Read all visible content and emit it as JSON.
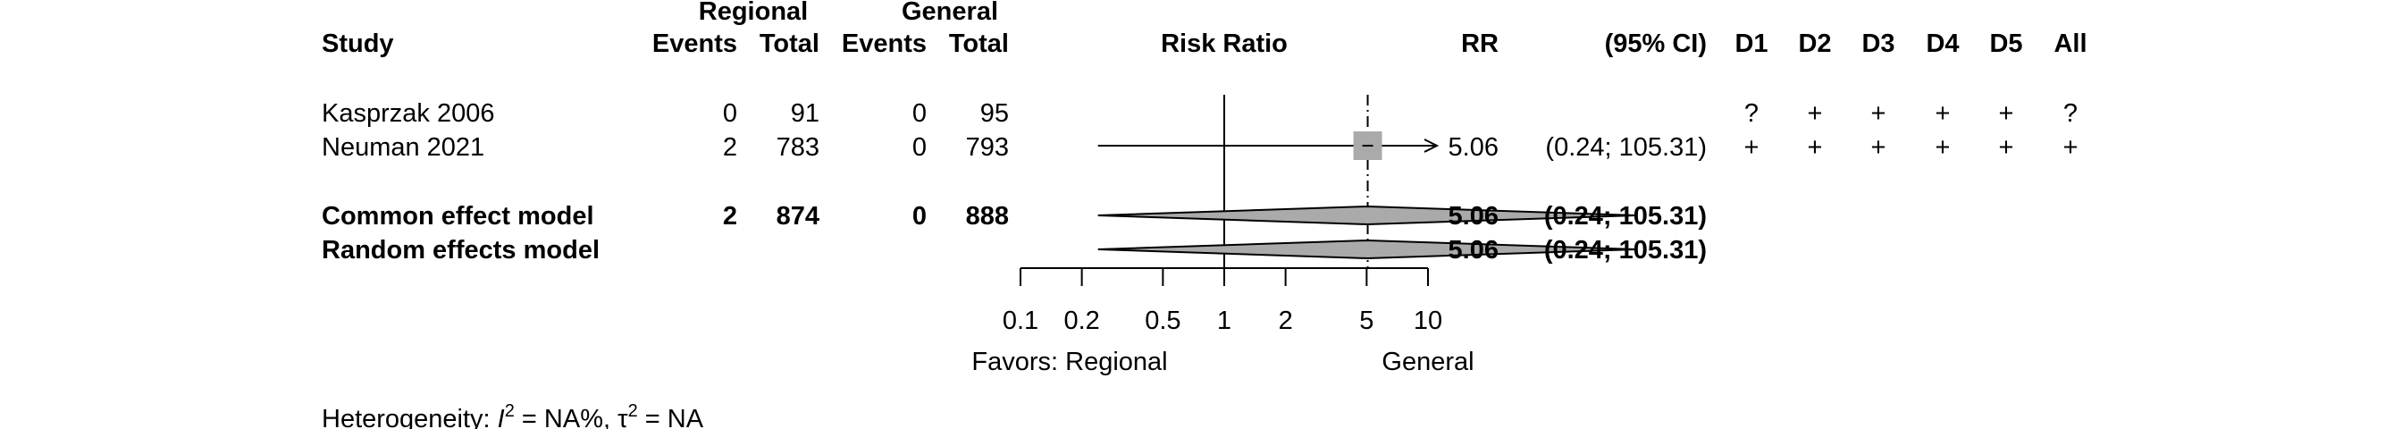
{
  "chart_data": {
    "type": "forest",
    "headers": {
      "study": "Study",
      "group1": "Regional",
      "group2": "General",
      "events": "Events",
      "total": "Total",
      "plot": "Risk Ratio",
      "rr": "RR",
      "ci": "(95% CI)",
      "domains": [
        "D1",
        "D2",
        "D3",
        "D4",
        "D5",
        "All"
      ]
    },
    "studies": [
      {
        "name": "Kasprzak 2006",
        "e1": "0",
        "t1": "91",
        "e2": "0",
        "t2": "95",
        "rr": "",
        "ci": "",
        "point": null,
        "lower": null,
        "upper": null,
        "bias": [
          "?",
          "+",
          "+",
          "+",
          "+",
          "?"
        ]
      },
      {
        "name": "Neuman 2021",
        "e1": "2",
        "t1": "783",
        "e2": "0",
        "t2": "793",
        "rr": "5.06",
        "ci": "(0.24; 105.31)",
        "point": 5.06,
        "lower": 0.24,
        "upper": 105.31,
        "bias": [
          "+",
          "+",
          "+",
          "+",
          "+",
          "+"
        ]
      }
    ],
    "pooled": [
      {
        "name": "Common effect model",
        "e1": "2",
        "t1": "874",
        "e2": "0",
        "t2": "888",
        "rr": "5.06",
        "ci": "(0.24; 105.31)",
        "point": 5.06,
        "lower": 0.24,
        "upper": 105.31
      },
      {
        "name": "Random effects model",
        "e1": "",
        "t1": "",
        "e2": "",
        "t2": "",
        "rr": "5.06",
        "ci": "(0.24; 105.31)",
        "point": 5.06,
        "lower": 0.24,
        "upper": 105.31
      }
    ],
    "axis": {
      "scale": "log",
      "xlim": [
        0.1,
        10
      ],
      "ticks": [
        "0.1",
        "0.2",
        "0.5",
        "1",
        "2",
        "5",
        "10"
      ],
      "null_value": 1,
      "left_label": "Favors: Regional",
      "right_label": "General"
    },
    "heterogeneity": {
      "prefix": "Heterogeneity: ",
      "i_symbol": "I",
      "sup": "2",
      "i_value": " = NA%, ",
      "tau_symbol": "τ",
      "tau_value": " = NA"
    },
    "colors": {
      "square": "#aaaaaa",
      "diamond": "#aaaaaa",
      "line": "#000000"
    }
  }
}
